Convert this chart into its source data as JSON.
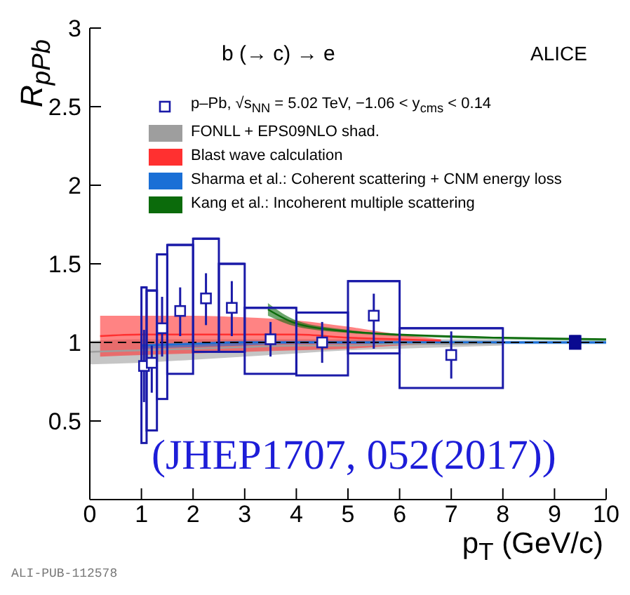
{
  "chart_data": {
    "type": "scatter",
    "xlabel": "p$_{T}$ (GeV/c)",
    "ylabel": "R$_{pPb}$",
    "annotations": [
      "b (→ c) → e",
      "ALICE",
      "(JHEP1707, 052(2017))",
      "ALI-PUB-112578"
    ],
    "xlim": [
      0,
      10
    ],
    "xticks": [
      0,
      1,
      2,
      3,
      4,
      5,
      6,
      7,
      8,
      9,
      10
    ],
    "ylim": [
      0,
      3
    ],
    "yticks": [
      {
        "value": 0,
        "label": null
      },
      0.5,
      1,
      1.5,
      2,
      2.5,
      3
    ],
    "grid": false,
    "legend": "top",
    "marker": "square",
    "ref_lines": [
      {
        "axis": "y",
        "value": 1,
        "color": "#000000",
        "line_style": "dashed"
      }
    ],
    "series": [
      {
        "name": "p–Pb, √s$_{NN}$ = 5.02 TeV, −1.06 < y$_{cms}$ < 0.14",
        "color": "#1a1aa8",
        "x": [
          1.05,
          1.2,
          1.4,
          1.75,
          2.25,
          2.75,
          3.5,
          4.5,
          5.5,
          7
        ],
        "values": [
          0.85,
          0.87,
          1.09,
          1.2,
          1.28,
          1.22,
          1.02,
          1.0,
          1.17,
          0.92
        ],
        "errors": [
          [
            0.62,
            1.08
          ],
          [
            0.68,
            0.98
          ],
          [
            0.91,
            1.29
          ],
          [
            1.04,
            1.35
          ],
          [
            1.11,
            1.44
          ],
          [
            1.04,
            1.39
          ],
          [
            0.91,
            1.13
          ],
          [
            0.87,
            1.13
          ],
          [
            0.96,
            1.31
          ],
          [
            0.77,
            1.07
          ]
        ]
      },
      {
        "name": "FONLL + EPS09NLO shad.",
        "type": "line",
        "marker": "none",
        "color": "#9e9e9e",
        "x": [
          0,
          1,
          2,
          3,
          4,
          5,
          6,
          7,
          8
        ],
        "values": [
          0.94,
          0.95,
          0.96,
          0.97,
          0.98,
          0.98,
          0.99,
          0.99,
          1.0
        ],
        "lower": [
          0.86,
          0.87,
          0.89,
          0.91,
          0.93,
          0.95,
          0.96,
          0.97,
          0.98
        ],
        "upper": [
          1.01,
          1.02,
          1.02,
          1.02,
          1.02,
          1.02,
          1.02,
          1.02,
          1.02
        ]
      },
      {
        "name": "Blast wave calculation",
        "type": "line",
        "marker": "none",
        "color": "#ff3030",
        "x": [
          0.2,
          1,
          2,
          3,
          4,
          5,
          6,
          6.8
        ],
        "values": [
          1.04,
          1.05,
          1.05,
          1.05,
          1.05,
          1.03,
          1.02,
          1.01
        ],
        "lower": [
          0.91,
          0.92,
          0.93,
          0.94,
          0.95,
          0.96,
          0.98,
          0.99
        ],
        "upper": [
          1.17,
          1.17,
          1.17,
          1.16,
          1.14,
          1.1,
          1.05,
          1.02
        ]
      },
      {
        "name": "Sharma et al.: Coherent scattering + CNM energy loss",
        "type": "line",
        "marker": "none",
        "color": "#1a6fd6",
        "x": [
          1,
          2,
          3,
          4,
          6,
          8,
          10
        ],
        "values": [
          0.98,
          0.99,
          1.0,
          1.0,
          1.0,
          1.0,
          1.0
        ],
        "lower": [
          0.96,
          0.97,
          0.98,
          0.99,
          0.99,
          0.99,
          0.99
        ],
        "upper": [
          0.99,
          1.0,
          1.01,
          1.01,
          1.01,
          1.01,
          1.01
        ]
      },
      {
        "name": "Kang et al.: Incoherent multiple scattering",
        "type": "line",
        "marker": "none",
        "color": "#0b6b0b",
        "x": [
          3.45,
          4,
          5,
          6,
          8,
          10
        ],
        "values": [
          1.21,
          1.12,
          1.07,
          1.05,
          1.03,
          1.02
        ],
        "lower": [
          1.17,
          1.1,
          1.06,
          1.04,
          1.02,
          1.01
        ],
        "upper": [
          1.25,
          1.14,
          1.08,
          1.05,
          1.03,
          1.02
        ]
      },
      {
        "type": "bar",
        "color": "#1a1aa8",
        "x": [
          1.05,
          1.2,
          1.4,
          1.75,
          2.25,
          2.75,
          3.5,
          4.5,
          5.5,
          7
        ],
        "xerrors": [
          0.05,
          0.1,
          0.1,
          0.25,
          0.25,
          0.25,
          0.5,
          0.5,
          0.5,
          1
        ],
        "base": [
          0.36,
          0.44,
          0.64,
          0.8,
          0.94,
          0.94,
          0.8,
          0.79,
          0.93,
          0.71
        ],
        "values": [
          0.99,
          0.89,
          0.92,
          0.82,
          0.72,
          0.56,
          0.42,
          0.4,
          0.46,
          0.38
        ]
      },
      {
        "type": "bar",
        "color": "#0a0a90",
        "x": [
          9.4
        ],
        "xerrors": [
          0.1
        ],
        "base": [
          0.96
        ],
        "values": [
          0.08
        ]
      }
    ]
  }
}
